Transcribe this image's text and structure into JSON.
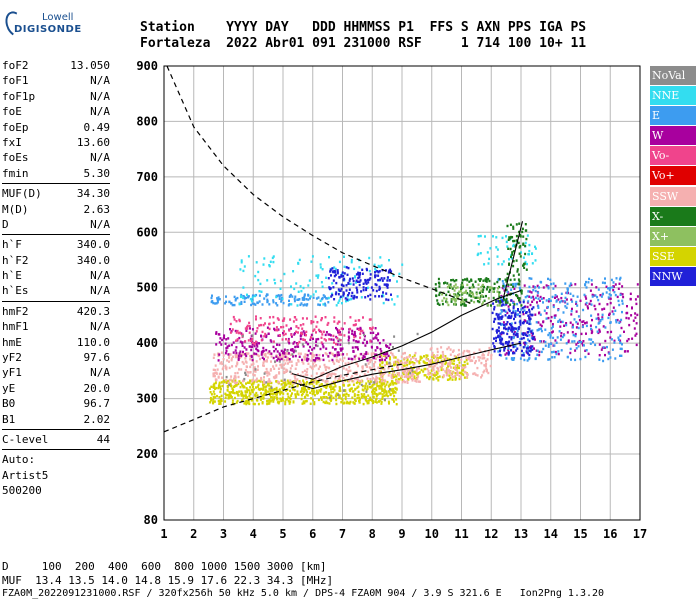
{
  "header": {
    "logo_line1": "Lowell",
    "logo_line2": "DIGISONDE",
    "row1": "Station    YYYY DAY   DDD HHMMSS P1  FFS S AXN PPS IGA PS",
    "row2": "Fortaleza  2022 Abr01 091 231000 RSF     1 714 100 10+ 11"
  },
  "params": [
    {
      "name": "foF2",
      "value": "13.050"
    },
    {
      "name": "foF1",
      "value": "N/A"
    },
    {
      "name": "foF1p",
      "value": "N/A"
    },
    {
      "name": "foE",
      "value": "N/A"
    },
    {
      "name": "foEp",
      "value": "0.49"
    },
    {
      "name": "fxI",
      "value": "13.60"
    },
    {
      "name": "foEs",
      "value": "N/A"
    },
    {
      "name": "fmin",
      "value": "5.30"
    },
    {
      "sep": true
    },
    {
      "name": "MUF(D)",
      "value": "34.30"
    },
    {
      "name": "M(D)",
      "value": "2.63"
    },
    {
      "name": "D",
      "value": "N/A"
    },
    {
      "sep": true
    },
    {
      "name": "h`F",
      "value": "340.0"
    },
    {
      "name": "h`F2",
      "value": "340.0"
    },
    {
      "name": "h`E",
      "value": "N/A"
    },
    {
      "name": "h`Es",
      "value": "N/A"
    },
    {
      "sep": true
    },
    {
      "name": "hmF2",
      "value": "420.3"
    },
    {
      "name": "hmF1",
      "value": "N/A"
    },
    {
      "name": "hmE",
      "value": "110.0"
    },
    {
      "name": "yF2",
      "value": "97.6"
    },
    {
      "name": "yF1",
      "value": "N/A"
    },
    {
      "name": "yE",
      "value": "20.0"
    },
    {
      "name": "B0",
      "value": "96.7"
    },
    {
      "name": "B1",
      "value": "2.02"
    },
    {
      "sep": true
    },
    {
      "name": "C-level",
      "value": "44"
    },
    {
      "sep": true
    },
    {
      "text": "Auto:"
    },
    {
      "text": "Artist5"
    },
    {
      "text": "500200"
    }
  ],
  "legend": [
    {
      "label": "NoVal",
      "color": "#8c8c8c"
    },
    {
      "label": "NNE",
      "color": "#33ddf0"
    },
    {
      "label": "E",
      "color": "#3d9cf0"
    },
    {
      "label": "W",
      "color": "#a8009e"
    },
    {
      "label": "Vo-",
      "color": "#f0448c"
    },
    {
      "label": "Vo+",
      "color": "#e00000"
    },
    {
      "label": "SSW",
      "color": "#f5b0b0"
    },
    {
      "label": "X-",
      "color": "#1a7a1a"
    },
    {
      "label": "X+",
      "color": "#8ec060"
    },
    {
      "label": "SSE",
      "color": "#d4d400"
    },
    {
      "label": "NNW",
      "color": "#2020d8"
    }
  ],
  "footer": {
    "line1": "D     100  200  400  600  800 1000 1500 3000 [km]",
    "line2": "MUF  13.4 13.5 14.0 14.8 15.9 17.6 22.3 34.3 [MHz]",
    "line3": "FZA0M_2022091231000.RSF / 320fx256h 50 kHz 5.0 km / DPS-4 FZA0M 904 / 3.9 S 321.6 E   Ion2Png 1.3.20"
  },
  "chart_data": {
    "type": "scatter",
    "title": "",
    "xlabel": "",
    "ylabel": "",
    "x_ticks": [
      1,
      2,
      3,
      4,
      5,
      6,
      7,
      8,
      9,
      10,
      11,
      12,
      13,
      14,
      15,
      16,
      17
    ],
    "y_ticks": [
      80,
      200,
      300,
      400,
      500,
      600,
      700,
      800,
      900
    ],
    "xlim": [
      1,
      17
    ],
    "ylim": [
      80,
      900
    ],
    "grid": true,
    "dashed_curves": {
      "upper": {
        "x": [
          1.1,
          2,
          3,
          4,
          5,
          6,
          7,
          8,
          9,
          10,
          11,
          11.4
        ],
        "y": [
          900,
          790,
          720,
          668,
          628,
          594,
          563,
          540,
          518,
          498,
          478,
          470
        ]
      },
      "lower": {
        "x": [
          1,
          2,
          3,
          4,
          5,
          6,
          7,
          8,
          9
        ],
        "y": [
          240,
          262,
          285,
          300,
          315,
          330,
          342,
          352,
          362
        ]
      }
    },
    "trace_lines": [
      {
        "x": [
          5.3,
          6,
          7,
          8,
          9,
          10,
          11,
          12.2,
          13
        ],
        "y": [
          345,
          335,
          358,
          375,
          395,
          420,
          450,
          480,
          495
        ]
      },
      {
        "x": [
          5.3,
          6,
          7,
          8,
          9,
          10,
          11,
          12,
          13
        ],
        "y": [
          330,
          318,
          332,
          344,
          352,
          362,
          375,
          388,
          400
        ]
      },
      {
        "x": [
          12.4,
          13.05
        ],
        "y": [
          480,
          620
        ]
      }
    ],
    "echo_clusters": [
      {
        "series": "SSE",
        "x": [
          2.5,
          8.8
        ],
        "y": [
          292,
          335
        ],
        "n": 700
      },
      {
        "series": "SSE",
        "x": [
          8.2,
          11.2
        ],
        "y": [
          335,
          380
        ],
        "n": 220
      },
      {
        "series": "SSW",
        "x": [
          2.6,
          9.6
        ],
        "y": [
          330,
          385
        ],
        "n": 520
      },
      {
        "series": "SSW",
        "x": [
          9.8,
          12
        ],
        "y": [
          340,
          395
        ],
        "n": 160
      },
      {
        "series": "W",
        "x": [
          2.7,
          8.6
        ],
        "y": [
          370,
          430
        ],
        "n": 320
      },
      {
        "series": "W",
        "x": [
          12.3,
          16.9
        ],
        "y": [
          380,
          510
        ],
        "n": 260
      },
      {
        "series": "Vo-",
        "x": [
          3.2,
          8
        ],
        "y": [
          400,
          450
        ],
        "n": 160
      },
      {
        "series": "E",
        "x": [
          12.2,
          16.4
        ],
        "y": [
          370,
          520
        ],
        "n": 320
      },
      {
        "series": "E",
        "x": [
          2.5,
          6.5
        ],
        "y": [
          470,
          490
        ],
        "n": 120
      },
      {
        "series": "NNE",
        "x": [
          3.5,
          9
        ],
        "y": [
          470,
          560
        ],
        "n": 130
      },
      {
        "series": "NNE",
        "x": [
          11.5,
          13.5
        ],
        "y": [
          540,
          600
        ],
        "n": 50
      },
      {
        "series": "NNW",
        "x": [
          6.5,
          8.6
        ],
        "y": [
          480,
          540
        ],
        "n": 160
      },
      {
        "series": "NNW",
        "x": [
          12,
          13.4
        ],
        "y": [
          380,
          480
        ],
        "n": 200
      },
      {
        "series": "X-",
        "x": [
          10.1,
          13
        ],
        "y": [
          470,
          520
        ],
        "n": 160
      },
      {
        "series": "X-",
        "x": [
          12.5,
          13.2
        ],
        "y": [
          520,
          620
        ],
        "n": 60
      },
      {
        "series": "X+",
        "x": [
          10.3,
          12.3
        ],
        "y": [
          470,
          510
        ],
        "n": 70
      },
      {
        "series": "NoVal",
        "x": [
          3,
          9.5
        ],
        "y": [
          300,
          420
        ],
        "n": 40
      }
    ]
  }
}
